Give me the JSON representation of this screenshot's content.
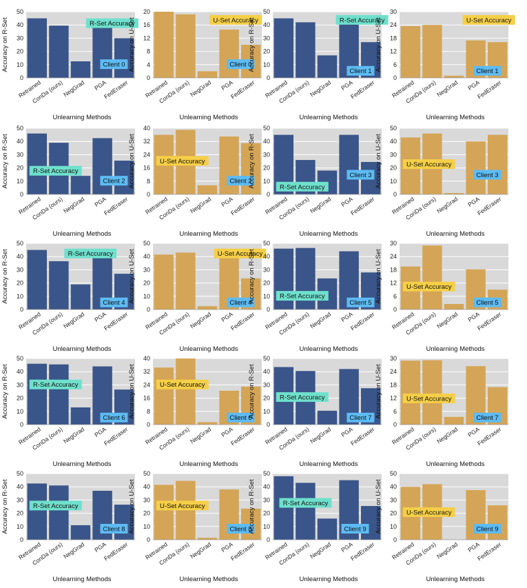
{
  "colors": {
    "r_bar": "#3a5589",
    "u_bar": "#d4a557",
    "plot_bg": "#d9d9d9",
    "grid": "#ffffff",
    "r_badge": "#6fe0cc",
    "u_badge": "#f5cf47",
    "client_badge": "#5dbbf3"
  },
  "common": {
    "xlabel": "Unlearning Methods",
    "r_ylabel": "Accuracy on R-Set",
    "u_ylabel": "Accuracy on U-Set",
    "r_badge": "R-Set Accuracy",
    "u_badge": "U-Set Accuracy"
  },
  "chart_data": [
    {
      "type": "bar",
      "client": "Client 0",
      "set": "R",
      "categories": [
        "Retrained",
        "ConDa (ours)",
        "NegGrad",
        "PGA",
        "FedEraser"
      ],
      "values": [
        45,
        39.5,
        12.5,
        38.5,
        30
      ],
      "ylim": [
        0,
        50
      ],
      "yticks": [
        0,
        10,
        20,
        30,
        40,
        50
      ],
      "xlabel": "Unlearning Methods",
      "ylabel": "Accuracy on R-Set"
    },
    {
      "type": "bar",
      "client": "Client 0",
      "set": "U",
      "categories": [
        "Retrained",
        "ConDa (ours)",
        "NegGrad",
        "PGA",
        "FedEraser"
      ],
      "values": [
        20,
        19.2,
        2,
        14.6,
        10
      ],
      "ylim": [
        0,
        20
      ],
      "yticks": [
        0,
        4,
        8,
        12,
        16,
        20
      ],
      "xlabel": "Unlearning Methods",
      "ylabel": "Accuracy on U-Set"
    },
    {
      "type": "bar",
      "client": "Client 1",
      "set": "R",
      "categories": [
        "Retrained",
        "ConDa (ours)",
        "NegGrad",
        "PGA",
        "FedEraser"
      ],
      "values": [
        45,
        42,
        17,
        41,
        27
      ],
      "ylim": [
        0,
        50
      ],
      "yticks": [
        0,
        10,
        20,
        30,
        40,
        50
      ],
      "xlabel": "Unlearning Methods",
      "ylabel": "Accuracy on R-Set"
    },
    {
      "type": "bar",
      "client": "Client 1",
      "set": "U",
      "categories": [
        "Retrained",
        "ConDa (ours)",
        "NegGrad",
        "PGA",
        "FedEraser"
      ],
      "values": [
        23.5,
        24,
        1,
        17,
        16.2
      ],
      "ylim": [
        0,
        30
      ],
      "yticks": [
        0,
        6,
        12,
        18,
        24,
        30
      ],
      "xlabel": "Unlearning Methods",
      "ylabel": "Accuracy on U-Set"
    },
    {
      "type": "bar",
      "client": "Client 2",
      "set": "R",
      "categories": [
        "Retrained",
        "ConDa (ours)",
        "NegGrad",
        "PGA",
        "FedEraser"
      ],
      "values": [
        46,
        39,
        14,
        42.5,
        25.5
      ],
      "ylim": [
        0,
        50
      ],
      "yticks": [
        0,
        10,
        20,
        30,
        40,
        50
      ],
      "xlabel": "Unlearning Methods",
      "ylabel": "Accuracy on R-Set"
    },
    {
      "type": "bar",
      "client": "Client 2",
      "set": "U",
      "categories": [
        "Retrained",
        "ConDa (ours)",
        "NegGrad",
        "PGA",
        "FedEraser"
      ],
      "values": [
        36,
        39,
        5.5,
        35,
        31
      ],
      "ylim": [
        0,
        40
      ],
      "yticks": [
        0,
        8,
        16,
        24,
        32,
        40
      ],
      "xlabel": "Unlearning Methods",
      "ylabel": "Accuracy on U-Set"
    },
    {
      "type": "bar",
      "client": "Client 3",
      "set": "R",
      "categories": [
        "Retrained",
        "ConDa (ours)",
        "NegGrad",
        "PGA",
        "FedEraser"
      ],
      "values": [
        45,
        26,
        18,
        45,
        24.5
      ],
      "ylim": [
        0,
        50
      ],
      "yticks": [
        0,
        10,
        20,
        30,
        40,
        50
      ],
      "xlabel": "Unlearning Methods",
      "ylabel": "Accuracy on R-Set"
    },
    {
      "type": "bar",
      "client": "Client 3",
      "set": "U",
      "categories": [
        "Retrained",
        "ConDa (ours)",
        "NegGrad",
        "PGA",
        "FedEraser"
      ],
      "values": [
        43,
        46,
        1,
        40,
        45
      ],
      "ylim": [
        0,
        50
      ],
      "yticks": [
        0,
        10,
        20,
        30,
        40,
        50
      ],
      "xlabel": "Unlearning Methods",
      "ylabel": "Accuracy on U-Set"
    },
    {
      "type": "bar",
      "client": "Client 4",
      "set": "R",
      "categories": [
        "Retrained",
        "ConDa (ours)",
        "NegGrad",
        "PGA",
        "FedEraser"
      ],
      "values": [
        45,
        36.5,
        19,
        41,
        27
      ],
      "ylim": [
        0,
        50
      ],
      "yticks": [
        0,
        10,
        20,
        30,
        40,
        50
      ],
      "xlabel": "Unlearning Methods",
      "ylabel": "Accuracy on R-Set"
    },
    {
      "type": "bar",
      "client": "Client 4",
      "set": "U",
      "categories": [
        "Retrained",
        "ConDa (ours)",
        "NegGrad",
        "PGA",
        "FedEraser"
      ],
      "values": [
        41.5,
        43,
        2.5,
        40,
        23.5
      ],
      "ylim": [
        0,
        50
      ],
      "yticks": [
        0,
        10,
        20,
        30,
        40,
        50
      ],
      "xlabel": "Unlearning Methods",
      "ylabel": "Accuracy on U-Set"
    },
    {
      "type": "bar",
      "client": "Client 5",
      "set": "R",
      "categories": [
        "Retrained",
        "ConDa (ours)",
        "NegGrad",
        "PGA",
        "FedEraser"
      ],
      "values": [
        46,
        46.5,
        23.5,
        44,
        28
      ],
      "ylim": [
        0,
        50
      ],
      "yticks": [
        0,
        10,
        20,
        30,
        40,
        50
      ],
      "xlabel": "Unlearning Methods",
      "ylabel": "Accuracy on R-Set"
    },
    {
      "type": "bar",
      "client": "Client 5",
      "set": "U",
      "categories": [
        "Retrained",
        "ConDa (ours)",
        "NegGrad",
        "PGA",
        "FedEraser"
      ],
      "values": [
        19.5,
        29,
        2.5,
        18.2,
        9
      ],
      "ylim": [
        0,
        30
      ],
      "yticks": [
        0,
        6,
        12,
        18,
        24,
        30
      ],
      "xlabel": "Unlearning Methods",
      "ylabel": "Accuracy on U-Set"
    },
    {
      "type": "bar",
      "client": "Client 6",
      "set": "R",
      "categories": [
        "Retrained",
        "ConDa (ours)",
        "NegGrad",
        "PGA",
        "FedEraser"
      ],
      "values": [
        46,
        45.5,
        13,
        44,
        26.5
      ],
      "ylim": [
        0,
        50
      ],
      "yticks": [
        0,
        10,
        20,
        30,
        40,
        50
      ],
      "xlabel": "Unlearning Methods",
      "ylabel": "Accuracy on R-Set"
    },
    {
      "type": "bar",
      "client": "Client 6",
      "set": "U",
      "categories": [
        "Retrained",
        "ConDa (ours)",
        "NegGrad",
        "PGA",
        "FedEraser"
      ],
      "values": [
        34.5,
        40,
        1.5,
        20.5,
        23
      ],
      "ylim": [
        0,
        40
      ],
      "yticks": [
        0,
        8,
        16,
        24,
        32,
        40
      ],
      "xlabel": "Unlearning Methods",
      "ylabel": "Accuracy on U-Set"
    },
    {
      "type": "bar",
      "client": "Client 7",
      "set": "R",
      "categories": [
        "Retrained",
        "ConDa (ours)",
        "NegGrad",
        "PGA",
        "FedEraser"
      ],
      "values": [
        43.5,
        40.5,
        10.5,
        42,
        27.5
      ],
      "ylim": [
        0,
        50
      ],
      "yticks": [
        0,
        10,
        20,
        30,
        40,
        50
      ],
      "xlabel": "Unlearning Methods",
      "ylabel": "Accuracy on R-Set"
    },
    {
      "type": "bar",
      "client": "Client 7",
      "set": "U",
      "categories": [
        "Retrained",
        "ConDa (ours)",
        "NegGrad",
        "PGA",
        "FedEraser"
      ],
      "values": [
        29,
        29.2,
        3.5,
        26.5,
        17
      ],
      "ylim": [
        0,
        30
      ],
      "yticks": [
        0,
        6,
        12,
        18,
        24,
        30
      ],
      "xlabel": "Unlearning Methods",
      "ylabel": "Accuracy on U-Set"
    },
    {
      "type": "bar",
      "client": "Client 8",
      "set": "R",
      "categories": [
        "Retrained",
        "ConDa (ours)",
        "NegGrad",
        "PGA",
        "FedEraser"
      ],
      "values": [
        42.5,
        41,
        11,
        37,
        26.5
      ],
      "ylim": [
        0,
        50
      ],
      "yticks": [
        0,
        10,
        20,
        30,
        40,
        50
      ],
      "xlabel": "Unlearning Methods",
      "ylabel": "Accuracy on R-Set"
    },
    {
      "type": "bar",
      "client": "Client 8",
      "set": "U",
      "categories": [
        "Retrained",
        "ConDa (ours)",
        "NegGrad",
        "PGA",
        "FedEraser"
      ],
      "values": [
        41.5,
        44.5,
        1.5,
        38,
        23.5
      ],
      "ylim": [
        0,
        50
      ],
      "yticks": [
        0,
        10,
        20,
        30,
        40,
        50
      ],
      "xlabel": "Unlearning Methods",
      "ylabel": "Accuracy on U-Set"
    },
    {
      "type": "bar",
      "client": "Client 9",
      "set": "R",
      "categories": [
        "Retrained",
        "ConDa (ours)",
        "NegGrad",
        "PGA",
        "FedEraser"
      ],
      "values": [
        48,
        43,
        16,
        45,
        25.5
      ],
      "ylim": [
        0,
        50
      ],
      "yticks": [
        0,
        10,
        20,
        30,
        40,
        50
      ],
      "xlabel": "Unlearning Methods",
      "ylabel": "Accuracy on R-Set"
    },
    {
      "type": "bar",
      "client": "Client 9",
      "set": "U",
      "categories": [
        "Retrained",
        "ConDa (ours)",
        "NegGrad",
        "PGA",
        "FedEraser"
      ],
      "values": [
        40,
        42,
        0,
        37.5,
        26
      ],
      "ylim": [
        0,
        50
      ],
      "yticks": [
        0,
        10,
        20,
        30,
        40,
        50
      ],
      "xlabel": "Unlearning Methods",
      "ylabel": "Accuracy on U-Set"
    }
  ]
}
